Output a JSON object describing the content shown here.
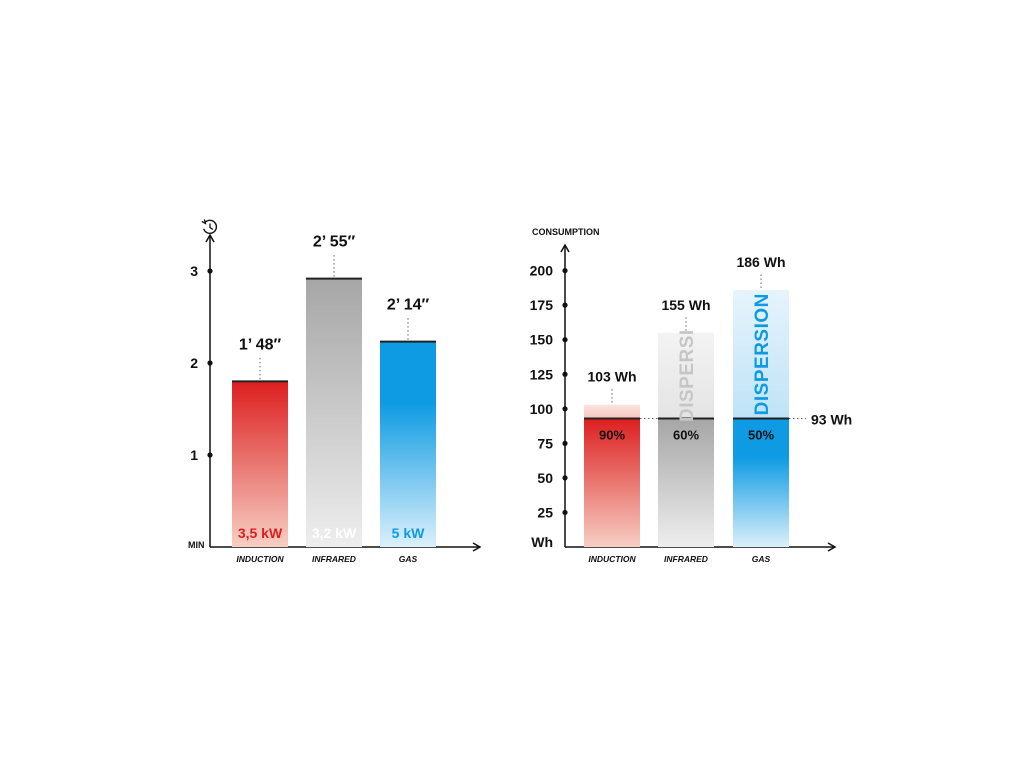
{
  "chart_data": [
    {
      "type": "bar",
      "icon": "clock-history-icon",
      "ylabel": "MIN",
      "ylim": [
        0,
        3.3
      ],
      "yticks": [
        1,
        2,
        3
      ],
      "categories": [
        "INDUCTION",
        "INFRARED",
        "GAS"
      ],
      "values": [
        1.8,
        2.917,
        2.233
      ],
      "value_labels": [
        "1’ 48″",
        "2’ 55″",
        "2’ 14″"
      ],
      "power_labels": [
        "3,5 kW",
        "3,2 kW",
        "5 kW"
      ],
      "colors": [
        "#dc1f1f",
        "#9c9c9c",
        "#0e9be3"
      ]
    },
    {
      "type": "bar",
      "title": "CONSUMPTION",
      "ylabel": "Wh",
      "ylim": [
        0,
        215
      ],
      "yticks": [
        25,
        50,
        75,
        100,
        125,
        150,
        175,
        200
      ],
      "categories": [
        "INDUCTION",
        "INFRARED",
        "GAS"
      ],
      "values": [
        103,
        155,
        186
      ],
      "value_labels": [
        "103 Wh",
        "155 Wh",
        "186 Wh"
      ],
      "useful_value": 93,
      "useful_label": "93 Wh",
      "efficiency_labels": [
        "90%",
        "60%",
        "50%"
      ],
      "dispersion_labels": [
        "",
        "DISPERSI",
        "DISPERSION"
      ],
      "colors": [
        "#dc1f1f",
        "#9c9c9c",
        "#0e9be3"
      ]
    }
  ]
}
